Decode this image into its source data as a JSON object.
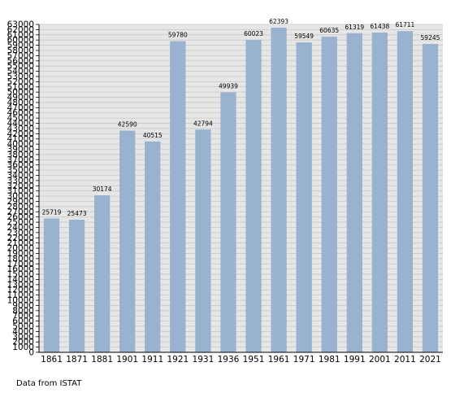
{
  "chart_data": {
    "type": "bar",
    "categories": [
      "1861",
      "1871",
      "1881",
      "1901",
      "1911",
      "1921",
      "1931",
      "1936",
      "1951",
      "1961",
      "1971",
      "1981",
      "1991",
      "2001",
      "2011",
      "2021"
    ],
    "values": [
      25719,
      25473,
      30174,
      42590,
      40515,
      59780,
      42794,
      49939,
      60023,
      62393,
      59549,
      60635,
      61319,
      61438,
      61711,
      59245
    ],
    "ylim": [
      0,
      63000
    ],
    "ytick_step": 1000,
    "grid": true,
    "bar_color": "#98b2cf",
    "plot_background": "#e6e6e6",
    "grid_color": "#c8c8c8"
  },
  "footer": {
    "source_note": "Data from ISTAT"
  }
}
